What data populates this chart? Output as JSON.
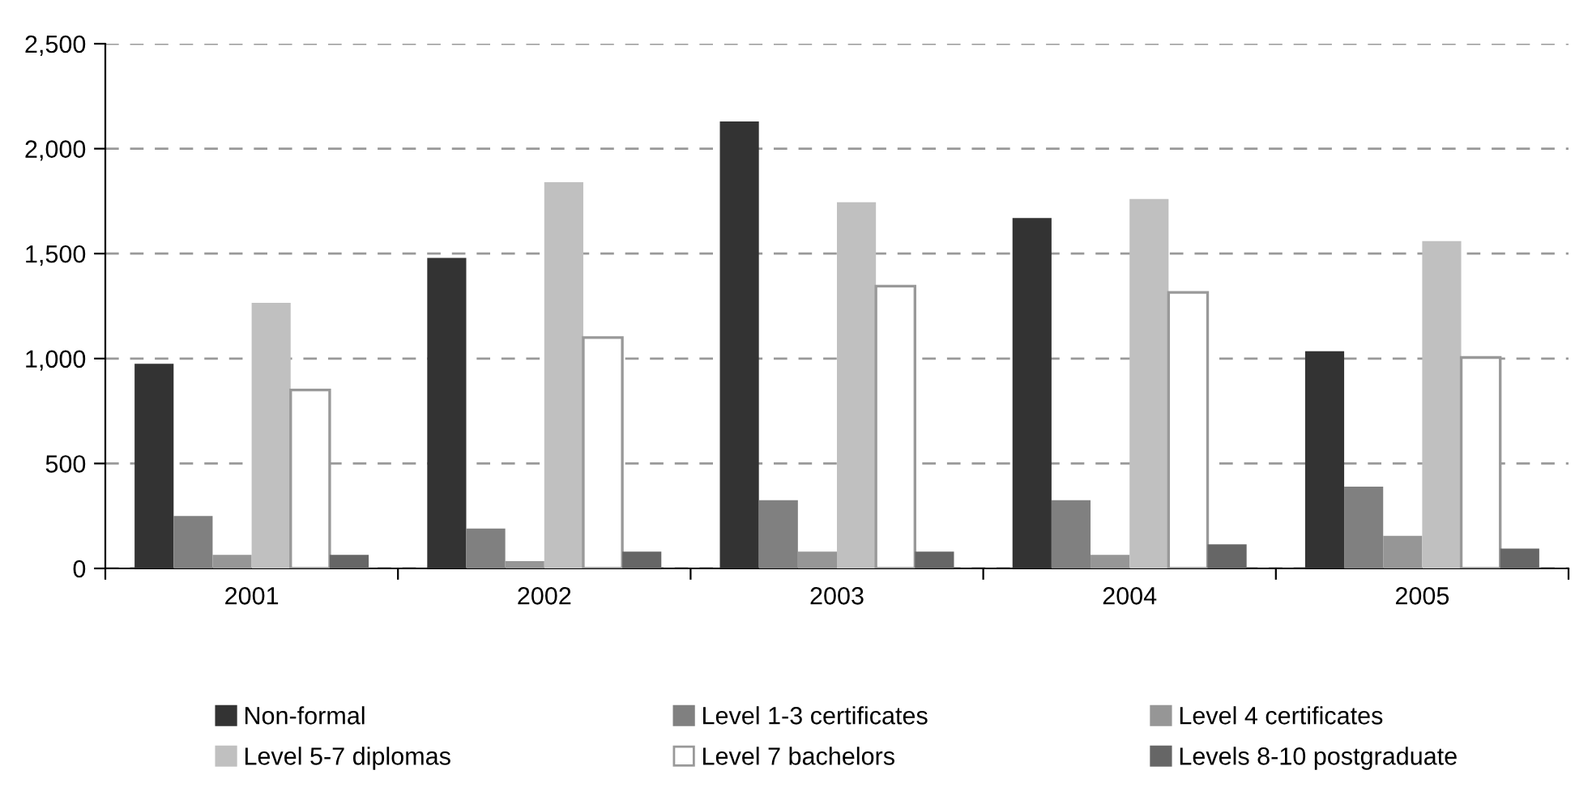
{
  "chart_data": {
    "type": "bar",
    "categories": [
      "2001",
      "2002",
      "2003",
      "2004",
      "2005"
    ],
    "ylim": [
      0,
      2500
    ],
    "yticks": [
      0,
      {
        "value": 500,
        "label": "500"
      },
      {
        "value": 1000,
        "label": "1,000"
      },
      {
        "value": 1500,
        "label": "1,500"
      },
      {
        "value": 2000,
        "label": "2,000"
      },
      {
        "value": 2500,
        "label": "2,500"
      }
    ],
    "grid": "y",
    "legend": "bottom",
    "series": [
      {
        "name": "Non-formal",
        "color": "#333333",
        "values": [
          975,
          1480,
          2130,
          1670,
          1035
        ]
      },
      {
        "name": "Level 1-3 certificates",
        "color": "#808080",
        "values": [
          250,
          190,
          325,
          325,
          390
        ]
      },
      {
        "name": "Level 4 certificates",
        "color": "#969696",
        "values": [
          65,
          35,
          80,
          65,
          155
        ]
      },
      {
        "name": "Level 5-7 diplomas",
        "color": "#c0c0c0",
        "values": [
          1265,
          1840,
          1745,
          1760,
          1560
        ]
      },
      {
        "name": "Level 7 bachelors",
        "color": "#ffffff",
        "values": [
          850,
          1100,
          1345,
          1315,
          1005
        ]
      },
      {
        "name": "Levels 8-10 postgraduate",
        "color": "#666666",
        "values": [
          65,
          80,
          80,
          115,
          95
        ]
      }
    ]
  }
}
